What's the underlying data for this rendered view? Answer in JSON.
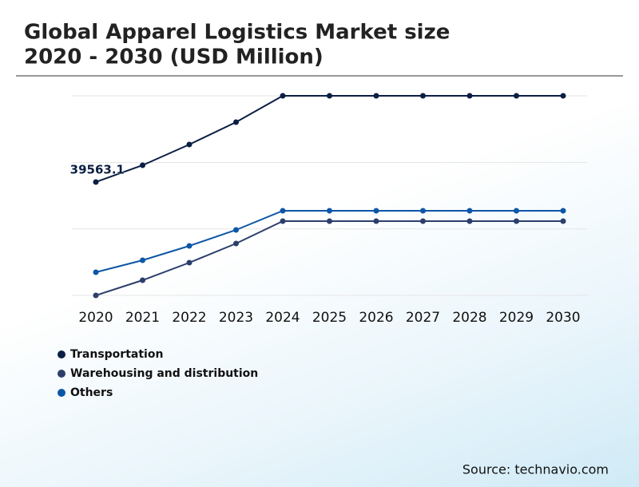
{
  "chart_data": {
    "type": "line",
    "title": [
      "Global Apparel Logistics Market size",
      "2020 - 2030 (USD Million)"
    ],
    "source": "Source: technavio.com",
    "x": [
      "2020",
      "2021",
      "2022",
      "2023",
      "2024",
      "2025",
      "2026",
      "2027",
      "2028",
      "2029",
      "2030"
    ],
    "series": [
      {
        "name": "Transportation",
        "color": "#0b1f44",
        "values": [
          39563.1,
          45411,
          52656,
          60456,
          69650,
          69650,
          69650,
          69650,
          69650,
          69650,
          69650
        ]
      },
      {
        "name": "Warehousing and distribution",
        "color": "#2c3e6b",
        "values": [
          0,
          5293,
          11423,
          18109,
          25910,
          25910,
          25910,
          25910,
          25910,
          25910,
          25910
        ]
      },
      {
        "name": "Others",
        "color": "#0d56a6",
        "values": [
          8079,
          12258,
          17273,
          22845,
          29532,
          29532,
          29532,
          29532,
          29532,
          29532,
          29532
        ]
      }
    ],
    "ylim": [
      0,
      69650
    ],
    "yticks": [
      0,
      23200,
      46400,
      69650
    ],
    "grid": true
  }
}
